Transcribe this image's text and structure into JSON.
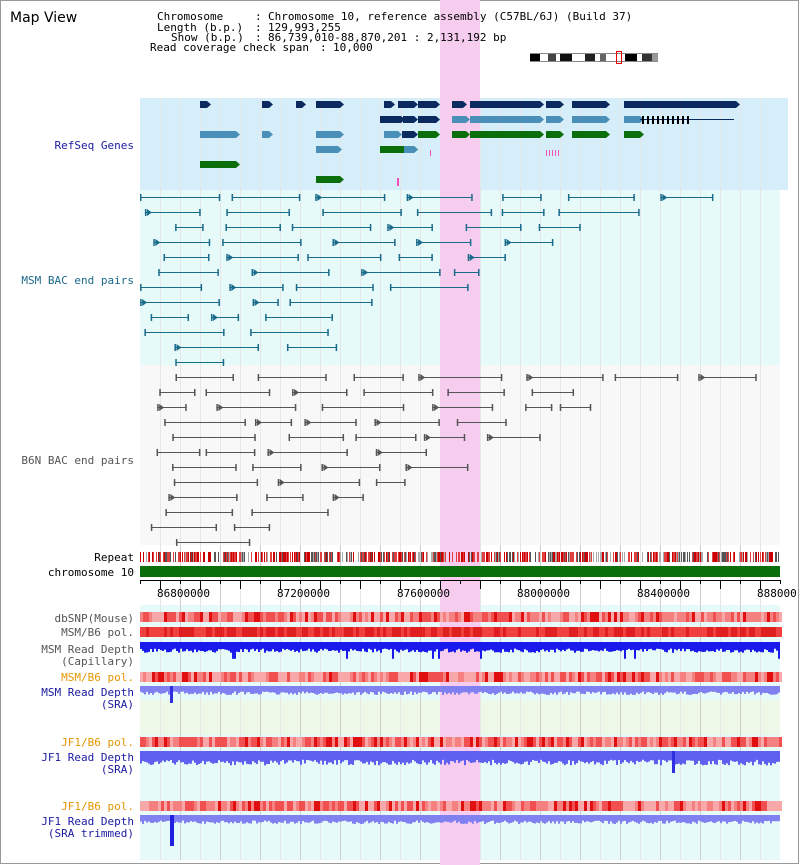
{
  "title": "Map View",
  "header": {
    "chromosome_key": "Chromosome",
    "chromosome_val": "Chromosome 10, reference assembly (C57BL/6J) (Build 37)",
    "length_key": "Length (b.p.)",
    "length_val": "129,993,255",
    "show_key": "Show (b.p.)",
    "show_val": "86,739,010-88,870,201 : 2,131,192 bp",
    "coverage_key": "Read coverage check span",
    "coverage_val": "10,000"
  },
  "tracks": {
    "refseq": "RefSeq Genes",
    "msm_bac": "MSM BAC end pairs",
    "b6n_bac": "B6N BAC end pairs",
    "repeat": "Repeat",
    "chromosome": "chromosome 10",
    "dbsnp": "dbSNP(Mouse)",
    "msm_b6_pol": "MSM/B6 pol.",
    "msm_read_depth_cap_1": "MSM Read Depth",
    "msm_read_depth_cap_2": "(Capillary)",
    "msm_b6_pol_sra": "MSM/B6 pol.",
    "msm_read_depth_sra_1": "MSM Read Depth",
    "msm_read_depth_sra_2": "(SRA)",
    "jf1_b6_pol_1": "JF1/B6 pol.",
    "jf1_read_depth_1": "JF1 Read Depth",
    "jf1_read_depth_sra": "(SRA)",
    "jf1_b6_pol_2": "JF1/B6 pol.",
    "jf1_read_depth_2": "JF1 Read Depth",
    "jf1_read_depth_trimmed": "(SRA trimmed)"
  },
  "axis_ticks": [
    "86800000",
    "87200000",
    "87600000",
    "88000000",
    "88400000",
    "888000"
  ],
  "colors": {
    "gene_navy": "#0a2a60",
    "gene_teal": "#4a8fb8",
    "gene_green": "#0a6e0a",
    "msm_bac": "#1a6a8a",
    "b6n_bac": "#555555",
    "highlight": "#f7cdef",
    "refseq_label": "#1a1aa0",
    "msm_label": "#1a6a8a",
    "b6n_label": "#555555",
    "pol_orange": "#e69500",
    "depth_blue": "#1010e0"
  }
}
